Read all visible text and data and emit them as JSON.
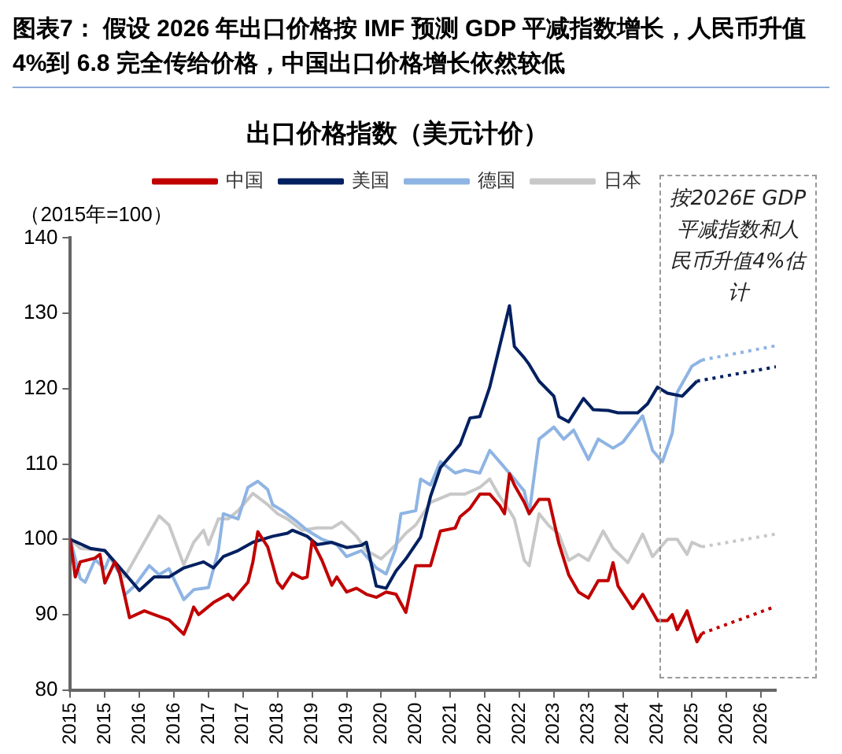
{
  "chart_data": {
    "type": "line",
    "title": "图表7： 假设 2026 年出口价格按 IMF 预测 GDP 平减指数增长，人民币升值 4%到 6.8 完全传给价格，中国出口价格增长依然较低",
    "subtitle": "出口价格指数（美元计价）",
    "ylabel": "（2015年=100）",
    "legend": "top",
    "grid": false,
    "marker": "none",
    "line_style": "solid",
    "xlim": [
      "2015-01",
      "2026-12"
    ],
    "xticks": [
      {
        "value": "2015-01",
        "label": "2015"
      },
      {
        "value": "2015-08",
        "label": "2015"
      },
      {
        "value": "2016-03",
        "label": "2016"
      },
      {
        "value": "2016-10",
        "label": "2016"
      },
      {
        "value": "2017-05",
        "label": "2017"
      },
      {
        "value": "2017-12",
        "label": "2017"
      },
      {
        "value": "2018-07",
        "label": "2018"
      },
      {
        "value": "2019-02",
        "label": "2019"
      },
      {
        "value": "2019-09",
        "label": "2019"
      },
      {
        "value": "2020-04",
        "label": "2020"
      },
      {
        "value": "2020-11",
        "label": "2020"
      },
      {
        "value": "2021-06",
        "label": "2021"
      },
      {
        "value": "2022-01",
        "label": "2022"
      },
      {
        "value": "2022-08",
        "label": "2022"
      },
      {
        "value": "2023-03",
        "label": "2023"
      },
      {
        "value": "2023-10",
        "label": "2023"
      },
      {
        "value": "2024-05",
        "label": "2024"
      },
      {
        "value": "2024-12",
        "label": "2024"
      },
      {
        "value": "2025-07",
        "label": "2025"
      },
      {
        "value": "2026-02",
        "label": "2026"
      },
      {
        "value": "2026-09",
        "label": "2026"
      }
    ],
    "ylim": [
      80,
      140
    ],
    "yticks": [
      80,
      90,
      100,
      110,
      120,
      130,
      140
    ],
    "annotations": [
      "按2026E GDP平减指数和人民币升值4%估计"
    ],
    "series": [
      {
        "name": "中国",
        "color": "#c00000",
        "x": [
          "2015-01",
          "2015-02",
          "2015-03",
          "2015-06",
          "2015-07",
          "2015-08",
          "2015-10",
          "2015-11",
          "2016-01",
          "2016-04",
          "2016-06",
          "2016-09",
          "2016-12",
          "2017-01",
          "2017-02",
          "2017-03",
          "2017-06",
          "2017-09",
          "2017-10",
          "2018-01",
          "2018-02",
          "2018-03",
          "2018-05",
          "2018-07",
          "2018-08",
          "2018-10",
          "2018-12",
          "2019-01",
          "2019-02",
          "2019-04",
          "2019-06",
          "2019-07",
          "2019-09",
          "2019-11",
          "2020-01",
          "2020-03",
          "2020-05",
          "2020-07",
          "2020-09",
          "2020-11",
          "2021-02",
          "2021-04",
          "2021-07",
          "2021-08",
          "2021-10",
          "2021-12",
          "2022-02",
          "2022-04",
          "2022-05",
          "2022-06",
          "2022-07",
          "2022-09",
          "2022-10",
          "2022-12",
          "2023-02",
          "2023-04",
          "2023-06",
          "2023-08",
          "2023-10",
          "2023-12",
          "2024-02",
          "2024-03",
          "2024-04",
          "2024-07",
          "2024-09",
          "2024-12",
          "2025-02",
          "2025-03",
          "2025-04",
          "2025-06",
          "2025-08",
          "2025-09"
        ],
        "values": [
          100,
          95,
          97,
          97.5,
          98,
          94.2,
          97,
          95.5,
          89.6,
          90.5,
          90,
          89.3,
          87.4,
          89,
          91,
          90,
          91.6,
          92.7,
          92,
          94.3,
          97,
          101,
          99,
          94.3,
          93.5,
          95.5,
          94.8,
          95,
          99.8,
          97.2,
          93.9,
          95,
          93,
          93.5,
          92.7,
          92.3,
          93,
          92.7,
          90.3,
          96.5,
          96.5,
          101.1,
          101.5,
          103,
          104.1,
          106,
          106,
          104.5,
          103.4,
          108.7,
          107.2,
          104.9,
          103.4,
          105.3,
          105.3,
          99.5,
          95.3,
          93,
          92.2,
          94.5,
          94.5,
          96.9,
          93.8,
          90.8,
          92.7,
          89.2,
          89.2,
          90,
          88,
          90.5,
          86.4,
          87.5
        ]
      },
      {
        "name": "美国",
        "color": "#002060",
        "x": [
          "2015-01",
          "2015-05",
          "2015-08",
          "2015-10",
          "2015-12",
          "2016-03",
          "2016-06",
          "2016-09",
          "2016-12",
          "2017-04",
          "2017-06",
          "2017-08",
          "2017-11",
          "2018-02",
          "2018-06",
          "2018-09",
          "2018-10",
          "2019-01",
          "2019-03",
          "2019-06",
          "2019-09",
          "2019-12",
          "2020-01",
          "2020-03",
          "2020-05",
          "2020-07",
          "2020-09",
          "2020-12",
          "2021-02",
          "2021-04",
          "2021-08",
          "2021-10",
          "2021-12",
          "2022-02",
          "2022-04",
          "2022-06",
          "2022-07",
          "2022-09",
          "2022-10",
          "2022-12",
          "2023-03",
          "2023-04",
          "2023-06",
          "2023-09",
          "2023-11",
          "2024-02",
          "2024-04",
          "2024-08",
          "2024-10",
          "2024-12",
          "2025-02",
          "2025-05",
          "2025-08"
        ],
        "values": [
          100,
          98.8,
          98.5,
          97,
          95.5,
          93.2,
          95,
          95,
          96.2,
          97,
          96.2,
          97.7,
          98.5,
          99.6,
          100.4,
          100.8,
          101.2,
          100.4,
          99.3,
          99.6,
          98.9,
          99.2,
          99.6,
          93.8,
          93.5,
          95.8,
          97.4,
          100.3,
          105.7,
          109.5,
          112.6,
          116.1,
          116.3,
          120.2,
          125.6,
          131,
          125.6,
          124.1,
          123.2,
          121,
          119,
          116.3,
          115.6,
          118.7,
          117.2,
          117.1,
          116.8,
          116.8,
          118,
          120.2,
          119.4,
          119,
          121
        ]
      },
      {
        "name": "德国",
        "color": "#8eb4e3",
        "x": [
          "2015-01",
          "2015-03",
          "2015-04",
          "2015-06",
          "2015-08",
          "2015-09",
          "2015-11",
          "2015-12",
          "2016-02",
          "2016-05",
          "2016-07",
          "2016-09",
          "2016-12",
          "2017-02",
          "2017-05",
          "2017-07",
          "2017-08",
          "2017-11",
          "2018-01",
          "2018-03",
          "2018-05",
          "2018-06",
          "2018-08",
          "2018-11",
          "2019-01",
          "2019-04",
          "2019-07",
          "2019-09",
          "2019-12",
          "2020-03",
          "2020-05",
          "2020-07",
          "2020-08",
          "2020-11",
          "2020-12",
          "2021-02",
          "2021-04",
          "2021-07",
          "2021-09",
          "2021-12",
          "2022-02",
          "2022-04",
          "2022-07",
          "2022-09",
          "2022-10",
          "2022-12",
          "2023-03",
          "2023-05",
          "2023-07",
          "2023-10",
          "2023-12",
          "2024-03",
          "2024-05",
          "2024-09",
          "2024-11",
          "2025-01",
          "2025-03",
          "2025-04",
          "2025-07",
          "2025-09"
        ],
        "values": [
          100,
          94.8,
          94.3,
          97.3,
          96.1,
          97.7,
          95.4,
          92.6,
          93.8,
          96.5,
          95.3,
          96.1,
          92,
          93.3,
          93.6,
          98.5,
          103.4,
          102.7,
          106.9,
          107.7,
          106.6,
          104.6,
          103.8,
          102.3,
          101.2,
          100,
          99.3,
          97.7,
          98.5,
          96.2,
          95.4,
          98.9,
          103.4,
          103.8,
          108,
          107.2,
          110.3,
          108.8,
          109.2,
          108.8,
          111.8,
          110.3,
          108,
          106.4,
          103.4,
          113.3,
          114.9,
          113.3,
          114.5,
          110.6,
          113.3,
          112.1,
          112.9,
          116.4,
          111.8,
          110.3,
          114.1,
          119.5,
          123,
          123.8
        ]
      },
      {
        "name": "日本",
        "color": "#c8c8c8",
        "x": [
          "2015-01",
          "2015-03",
          "2015-08",
          "2015-11",
          "2015-12",
          "2016-02",
          "2016-05",
          "2016-07",
          "2016-09",
          "2016-12",
          "2017-02",
          "2017-04",
          "2017-05",
          "2017-07",
          "2017-09",
          "2017-11",
          "2018-02",
          "2018-05",
          "2018-07",
          "2018-09",
          "2018-12",
          "2019-03",
          "2019-06",
          "2019-08",
          "2019-11",
          "2020-01",
          "2020-04",
          "2020-07",
          "2020-09",
          "2020-11",
          "2021-02",
          "2021-06",
          "2021-09",
          "2021-12",
          "2022-02",
          "2022-04",
          "2022-06",
          "2022-07",
          "2022-09",
          "2022-10",
          "2022-12",
          "2023-02",
          "2023-04",
          "2023-06",
          "2023-08",
          "2023-10",
          "2024-01",
          "2024-03",
          "2024-06",
          "2024-09",
          "2024-11",
          "2025-02",
          "2025-04",
          "2025-06",
          "2025-07",
          "2025-09"
        ],
        "values": [
          100,
          98.8,
          98.5,
          96.2,
          95,
          97.3,
          100.8,
          103.1,
          101.9,
          96.6,
          99.6,
          101.2,
          99.3,
          102.7,
          102.7,
          103.8,
          106.1,
          104.6,
          103.4,
          102.7,
          101.2,
          101.5,
          101.5,
          102.3,
          100.4,
          98.5,
          97.4,
          99.3,
          100.8,
          101.9,
          104.9,
          106,
          106,
          106.9,
          108,
          105.7,
          103.8,
          102.7,
          97.2,
          96.5,
          103.4,
          101.8,
          100.7,
          97.2,
          98,
          97.2,
          101.1,
          98.8,
          96.9,
          100.7,
          97.7,
          100,
          100,
          98,
          99.6,
          99
        ]
      },
      {
        "type": "line",
        "line_style": "dotted",
        "color": "#c00000",
        "x": [
          "2025-09",
          "2026-12"
        ],
        "values": [
          87.5,
          91.1
        ]
      },
      {
        "type": "line",
        "line_style": "dotted",
        "color": "#002060",
        "x": [
          "2025-08",
          "2026-12"
        ],
        "values": [
          121,
          122.9
        ]
      },
      {
        "type": "line",
        "line_style": "dotted",
        "color": "#8eb4e3",
        "x": [
          "2025-09",
          "2026-12"
        ],
        "values": [
          123.8,
          125.7
        ]
      },
      {
        "type": "line",
        "line_style": "dotted",
        "color": "#c8c8c8",
        "x": [
          "2025-09",
          "2026-12"
        ],
        "values": [
          99,
          100.7
        ]
      }
    ]
  }
}
